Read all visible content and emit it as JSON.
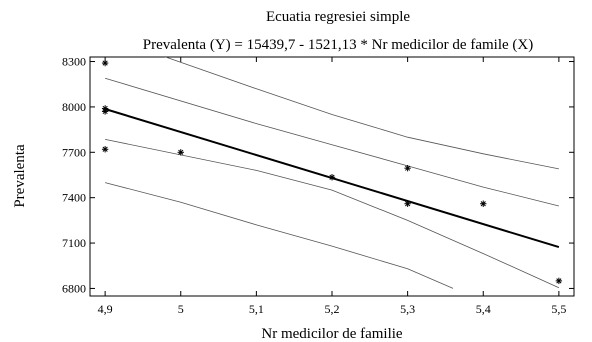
{
  "chart_data": {
    "type": "scatter",
    "title": "Ecuatia regresiei simple",
    "subtitle": "Prevalenta (Y) = 15439,7 - 1521,13 * Nr medicilor de famile (X)",
    "xlabel": "Nr medicilor de familie",
    "ylabel": "Prevalenta",
    "xlim": [
      4.88,
      5.52
    ],
    "ylim": [
      6750,
      8330
    ],
    "x_ticks": [
      4.9,
      5.0,
      5.1,
      5.2,
      5.3,
      5.4,
      5.5
    ],
    "x_tick_labels": [
      "4,9",
      "5",
      "5,1",
      "5,2",
      "5,3",
      "5,4",
      "5,5"
    ],
    "y_ticks": [
      6800,
      7100,
      7400,
      7700,
      8000,
      8300
    ],
    "y_tick_labels": [
      "6800",
      "7100",
      "7400",
      "7700",
      "8000",
      "8300"
    ],
    "grid": false,
    "legend": "none",
    "points": [
      {
        "x": 4.9,
        "y": 8290
      },
      {
        "x": 4.9,
        "y": 7990
      },
      {
        "x": 4.9,
        "y": 7970
      },
      {
        "x": 4.9,
        "y": 7720
      },
      {
        "x": 5.0,
        "y": 7700
      },
      {
        "x": 5.2,
        "y": 7535
      },
      {
        "x": 5.3,
        "y": 7595
      },
      {
        "x": 5.3,
        "y": 7360
      },
      {
        "x": 5.4,
        "y": 7360
      },
      {
        "x": 5.5,
        "y": 6850
      }
    ],
    "regression_line": [
      [
        4.9,
        7986.2
      ],
      [
        5.5,
        7073.5
      ]
    ],
    "confidence_upper": [
      [
        4.9,
        8190
      ],
      [
        5.1,
        7890
      ],
      [
        5.2,
        7750
      ],
      [
        5.3,
        7610
      ],
      [
        5.4,
        7470
      ],
      [
        5.5,
        7345
      ]
    ],
    "confidence_lower": [
      [
        4.9,
        7785
      ],
      [
        5.1,
        7580
      ],
      [
        5.2,
        7450
      ],
      [
        5.3,
        7250
      ],
      [
        5.4,
        7030
      ],
      [
        5.5,
        6805
      ]
    ],
    "prediction_upper": [
      [
        4.9,
        8470
      ],
      [
        5.1,
        8120
      ],
      [
        5.2,
        7950
      ],
      [
        5.3,
        7800
      ],
      [
        5.4,
        7690
      ],
      [
        5.5,
        7590
      ]
    ],
    "prediction_lower": [
      [
        4.9,
        7500
      ],
      [
        5.0,
        7370
      ],
      [
        5.1,
        7220
      ],
      [
        5.2,
        7080
      ],
      [
        5.3,
        6930
      ],
      [
        5.36,
        6800
      ]
    ],
    "colors": {
      "regression": "#000000",
      "bands": "#555555",
      "points": "#000000"
    }
  }
}
